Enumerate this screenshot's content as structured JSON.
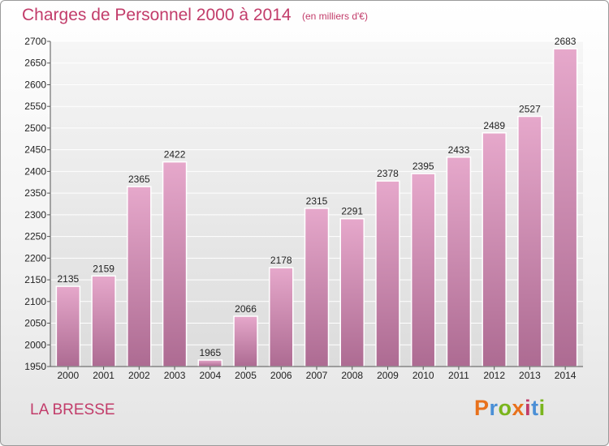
{
  "header": {
    "title": "Charges de Personnel 2000 à 2014",
    "subtitle": "(en milliers d'€)"
  },
  "footer": {
    "commune": "LA BRESSE",
    "logo_text": "Proxiti",
    "logo_colors": [
      "#e8711c",
      "#4a8fd6",
      "#7ab51d",
      "#e8711c",
      "#c23c6a",
      "#4a8fd6",
      "#7ab51d"
    ]
  },
  "colors": {
    "title": "#c23c6a",
    "bar_top": "#e6a8cb",
    "bar_bottom": "#ad6b92",
    "axis_text": "#222222",
    "grid": "#ffffff"
  },
  "chart_data": {
    "type": "bar",
    "title": "Charges de Personnel 2000 à 2014",
    "subtitle": "(en milliers d'€)",
    "categories": [
      "2000",
      "2001",
      "2002",
      "2003",
      "2004",
      "2005",
      "2006",
      "2007",
      "2008",
      "2009",
      "2010",
      "2011",
      "2012",
      "2013",
      "2014"
    ],
    "values": [
      2135,
      2159,
      2365,
      2422,
      1965,
      2066,
      2178,
      2315,
      2291,
      2378,
      2395,
      2433,
      2489,
      2527,
      2683
    ],
    "ylim": [
      1950,
      2700
    ],
    "yticks": [
      1950,
      2000,
      2050,
      2100,
      2150,
      2200,
      2250,
      2300,
      2350,
      2400,
      2450,
      2500,
      2550,
      2600,
      2650,
      2700
    ],
    "grid": true,
    "data_labels": true
  }
}
